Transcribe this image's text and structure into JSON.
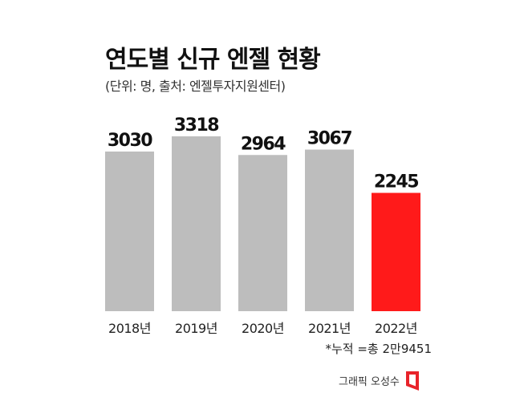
{
  "chart_data": {
    "type": "bar",
    "title": "연도별 신규 엔젤 현황",
    "subtitle": "(단위: 명, 출처: 엔젤투자지원센터)",
    "categories": [
      "2018년",
      "2019년",
      "2020년",
      "2021년",
      "2022년"
    ],
    "values": [
      3030,
      3318,
      2964,
      3067,
      2245
    ],
    "value_labels": [
      "3030",
      "3318",
      "2964",
      "3067",
      "2245"
    ],
    "ylim": [
      0,
      3318
    ],
    "grid": false,
    "legend": "none",
    "bar_color": "#bdbdbd",
    "highlight_color": "#ff1a1a",
    "highlight_index": 4
  },
  "note": "*누적 =총 2만9451",
  "credit": "그래픽 오성수",
  "logo_color": "#e8232a"
}
